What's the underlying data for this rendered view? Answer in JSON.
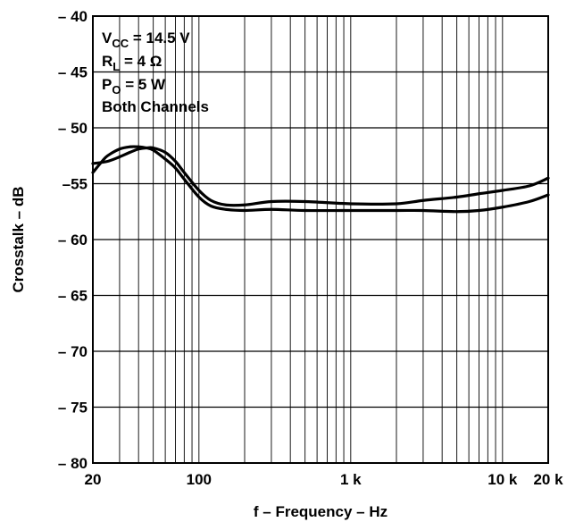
{
  "chart_data": {
    "type": "line",
    "xscale": "log",
    "xlim": [
      20,
      20000
    ],
    "ylim": [
      -80,
      -40
    ],
    "grid": true,
    "xlabel": "f – Frequency – Hz",
    "ylabel": "Crosstalk – dB",
    "x_ticks": [
      {
        "value": 20,
        "label": "20"
      },
      {
        "value": 100,
        "label": "100"
      },
      {
        "value": 1000,
        "label": "1 k"
      },
      {
        "value": 10000,
        "label": "10 k"
      },
      {
        "value": 20000,
        "label": "20 k"
      }
    ],
    "y_ticks": [
      {
        "value": -40,
        "label": "– 40"
      },
      {
        "value": -45,
        "label": "– 45"
      },
      {
        "value": -50,
        "label": "– 50"
      },
      {
        "value": -55,
        "label": "–55"
      },
      {
        "value": -60,
        "label": "– 60"
      },
      {
        "value": -65,
        "label": "– 65"
      },
      {
        "value": -70,
        "label": "– 70"
      },
      {
        "value": -75,
        "label": "– 75"
      },
      {
        "value": -80,
        "label": "– 80"
      }
    ],
    "annotations": {
      "vcc": {
        "main": "V",
        "sub": "CC",
        "rest": " = 14.5 V"
      },
      "rl": {
        "main": "R",
        "sub": "L",
        "rest": " = 4 Ω"
      },
      "po": {
        "main": "P",
        "sub": "O",
        "rest": " = 5 W"
      },
      "channels": "Both Channels"
    },
    "series": [
      {
        "x": [
          20,
          25,
          30,
          35,
          40,
          45,
          50,
          60,
          70,
          80,
          100,
          120,
          150,
          200,
          300,
          500,
          1000,
          2000,
          3000,
          5000,
          7000,
          10000,
          15000,
          20000
        ],
        "y": [
          -53.2,
          -53.0,
          -52.6,
          -52.2,
          -51.9,
          -51.8,
          -51.8,
          -52.2,
          -53.0,
          -54.0,
          -55.6,
          -56.5,
          -56.9,
          -56.9,
          -56.6,
          -56.6,
          -56.8,
          -56.8,
          -56.5,
          -56.2,
          -55.9,
          -55.6,
          -55.2,
          -54.5
        ]
      },
      {
        "x": [
          20,
          23,
          25,
          30,
          35,
          40,
          45,
          50,
          60,
          70,
          80,
          100,
          120,
          150,
          200,
          300,
          500,
          1000,
          2000,
          3000,
          5000,
          7000,
          10000,
          15000,
          20000
        ],
        "y": [
          -54.0,
          -53.0,
          -52.5,
          -51.9,
          -51.7,
          -51.7,
          -51.8,
          -52.0,
          -52.8,
          -53.6,
          -54.6,
          -56.2,
          -57.0,
          -57.3,
          -57.4,
          -57.3,
          -57.4,
          -57.4,
          -57.4,
          -57.4,
          -57.5,
          -57.4,
          -57.1,
          -56.6,
          -56.0
        ]
      }
    ]
  }
}
